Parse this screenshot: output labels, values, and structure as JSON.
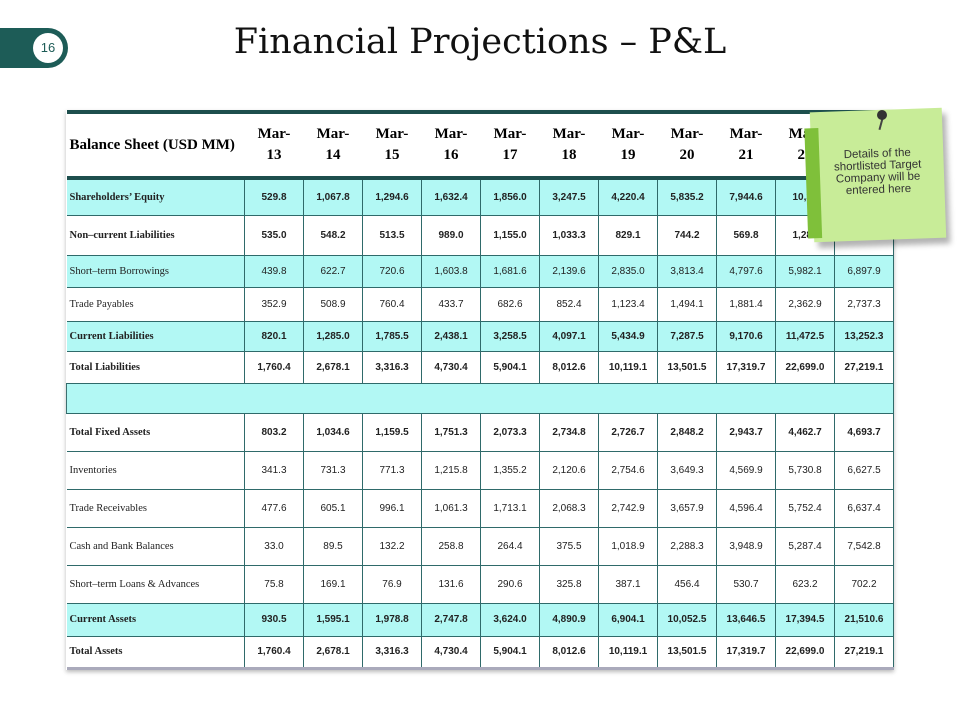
{
  "page_number": "16",
  "title": "Financial Projections – P&L",
  "table": {
    "header": [
      "Balance Sheet (USD MM)",
      "Mar-13",
      "Mar-14",
      "Mar-15",
      "Mar-16",
      "Mar-17",
      "Mar-18",
      "Mar-19",
      "Mar-20",
      "Mar-21",
      "Mar-22",
      ""
    ],
    "rows": [
      {
        "label": "Shareholders’ Equity",
        "values": [
          "529.8",
          "1,067.8",
          "1,294.6",
          "1,632.4",
          "1,856.0",
          "3,247.5",
          "4,220.4",
          "5,835.2",
          "7,944.6",
          "10,30",
          ""
        ]
      },
      {
        "label": "Non–current Liabilities",
        "values": [
          "535.0",
          "548.2",
          "513.5",
          "989.0",
          "1,155.0",
          "1,033.3",
          "829.1",
          "744.2",
          "569.8",
          "1,285",
          ""
        ]
      },
      {
        "label": "Short–term Borrowings",
        "values": [
          "439.8",
          "622.7",
          "720.6",
          "1,603.8",
          "1,681.6",
          "2,139.6",
          "2,835.0",
          "3,813.4",
          "4,797.6",
          "5,982.1",
          "6,897.9"
        ]
      },
      {
        "label": "Trade Payables",
        "values": [
          "352.9",
          "508.9",
          "760.4",
          "433.7",
          "682.6",
          "852.4",
          "1,123.4",
          "1,494.1",
          "1,881.4",
          "2,362.9",
          "2,737.3"
        ]
      },
      {
        "label": "Current Liabilities",
        "values": [
          "820.1",
          "1,285.0",
          "1,785.5",
          "2,438.1",
          "3,258.5",
          "4,097.1",
          "5,434.9",
          "7,287.5",
          "9,170.6",
          "11,472.5",
          "13,252.3"
        ]
      },
      {
        "label": "Total Liabilities",
        "values": [
          "1,760.4",
          "2,678.1",
          "3,316.3",
          "4,730.4",
          "5,904.1",
          "8,012.6",
          "10,119.1",
          "13,501.5",
          "17,319.7",
          "22,699.0",
          "27,219.1"
        ]
      },
      {
        "label": "Total Fixed Assets",
        "values": [
          "803.2",
          "1,034.6",
          "1,159.5",
          "1,751.3",
          "2,073.3",
          "2,734.8",
          "2,726.7",
          "2,848.2",
          "2,943.7",
          "4,462.7",
          "4,693.7"
        ]
      },
      {
        "label": "Inventories",
        "values": [
          "341.3",
          "731.3",
          "771.3",
          "1,215.8",
          "1,355.2",
          "2,120.6",
          "2,754.6",
          "3,649.3",
          "4,569.9",
          "5,730.8",
          "6,627.5"
        ]
      },
      {
        "label": "Trade Receivables",
        "values": [
          "477.6",
          "605.1",
          "996.1",
          "1,061.3",
          "1,713.1",
          "2,068.3",
          "2,742.9",
          "3,657.9",
          "4,596.4",
          "5,752.4",
          "6,637.4"
        ]
      },
      {
        "label": "Cash and Bank Balances",
        "values": [
          "33.0",
          "89.5",
          "132.2",
          "258.8",
          "264.4",
          "375.5",
          "1,018.9",
          "2,288.3",
          "3,948.9",
          "5,287.4",
          "7,542.8"
        ]
      },
      {
        "label": "Short–term Loans & Advances",
        "values": [
          "75.8",
          "169.1",
          "76.9",
          "131.6",
          "290.6",
          "325.8",
          "387.1",
          "456.4",
          "530.7",
          "623.2",
          "702.2"
        ]
      },
      {
        "label": "Current Assets",
        "values": [
          "930.5",
          "1,595.1",
          "1,978.8",
          "2,747.8",
          "3,624.0",
          "4,890.9",
          "6,904.1",
          "10,052.5",
          "13,646.5",
          "17,394.5",
          "21,510.6"
        ]
      },
      {
        "label": "Total Assets",
        "values": [
          "1,760.4",
          "2,678.1",
          "3,316.3",
          "4,730.4",
          "5,904.1",
          "8,012.6",
          "10,119.1",
          "13,501.5",
          "17,319.7",
          "22,699.0",
          "27,219.1"
        ]
      }
    ]
  },
  "note": "Details of the shortlisted Target Company will be entered here"
}
